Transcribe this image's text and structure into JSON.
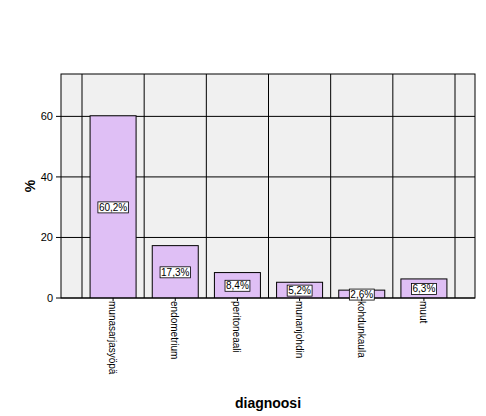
{
  "chart_data": {
    "type": "bar",
    "categories": [
      "munasarjasyöpä",
      "endometrium",
      "peritoneaali",
      "munanjohdin",
      "kohdunkaula",
      "muut"
    ],
    "values": [
      60.2,
      17.3,
      8.4,
      5.2,
      2.6,
      6.3
    ],
    "value_labels": [
      "60,2%",
      "17,3%",
      "8,4%",
      "5,2%",
      "2,6%",
      "6,3%"
    ],
    "color": "#dfbff5",
    "ylim": [
      0,
      74
    ],
    "yticks": [
      0,
      20,
      40,
      60
    ],
    "grid": true,
    "data_labels": true,
    "x_label": "diagnoosi",
    "y_label": "%"
  }
}
